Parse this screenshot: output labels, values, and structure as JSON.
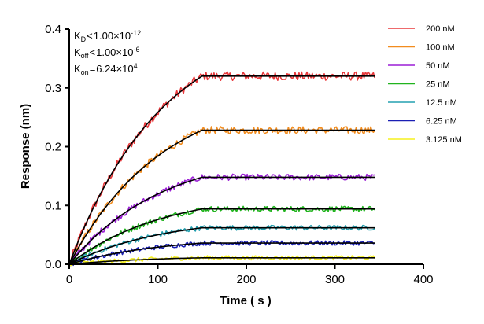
{
  "chart_data": {
    "type": "line",
    "xlabel": "Time ( s )",
    "ylabel": "Response (nm)",
    "xlim": [
      0,
      400
    ],
    "ylim": [
      0,
      0.4
    ],
    "x_ticks": [
      0,
      100,
      200,
      300,
      400
    ],
    "y_ticks": [
      0.0,
      0.1,
      0.2,
      0.3,
      0.4
    ],
    "x_tick_labels": [
      "0",
      "100",
      "200",
      "300",
      "400"
    ],
    "y_tick_labels": [
      "0.0",
      "0.1",
      "0.2",
      "0.3",
      "0.4"
    ],
    "legend_position": "top-right",
    "association_end_s": 150,
    "time_end_s": 345,
    "kon": 62400,
    "annotations": {
      "kd": {
        "sym": "K",
        "sub": "D",
        "op": "<",
        "mant": "1.00×10",
        "exp": "-12"
      },
      "koff": {
        "sym": "K",
        "sub": "off",
        "op": "<",
        "mant": "1.00×10",
        "exp": "-6"
      },
      "kon": {
        "sym": "K",
        "sub": "on",
        "op": "=",
        "mant": "6.24×10",
        "exp": "4"
      }
    },
    "series": [
      {
        "name": "200 nM",
        "color": "#e8383b",
        "plateau": 0.32
      },
      {
        "name": "100 nM",
        "color": "#f28c1e",
        "plateau": 0.228
      },
      {
        "name": "50 nM",
        "color": "#9b1fd6",
        "plateau": 0.148
      },
      {
        "name": "25 nM",
        "color": "#21b41e",
        "plateau": 0.094
      },
      {
        "name": "12.5 nM",
        "color": "#23a0b0",
        "plateau": 0.062
      },
      {
        "name": "6.25 nM",
        "color": "#1a1fb4",
        "plateau": 0.036
      },
      {
        "name": "3.125 nM",
        "color": "#f5f01e",
        "plateau": 0.011
      }
    ]
  }
}
